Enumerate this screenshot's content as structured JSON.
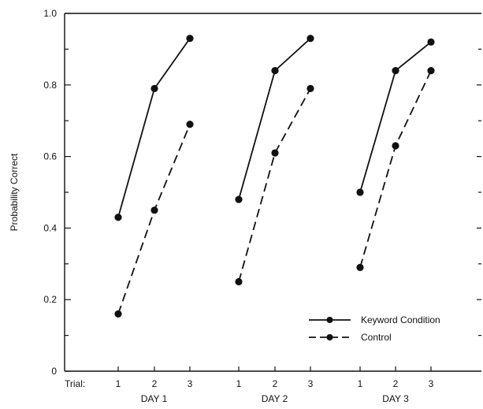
{
  "chart_data": {
    "type": "line",
    "title": "",
    "ylabel": "Probability Correct",
    "xlabel": "",
    "ylim": [
      0,
      1.0
    ],
    "yticks": [
      0,
      0.2,
      0.4,
      0.6,
      0.8,
      1.0
    ],
    "ytick_labels": [
      "0",
      "0.2",
      "0.4",
      "0.6",
      "0.8",
      "1.0"
    ],
    "x_axis_prefix": "Trial:",
    "groups": [
      {
        "label": "DAY 1",
        "trials": [
          "1",
          "2",
          "3"
        ]
      },
      {
        "label": "DAY 2",
        "trials": [
          "1",
          "2",
          "3"
        ]
      },
      {
        "label": "DAY 3",
        "trials": [
          "1",
          "2",
          "3"
        ]
      }
    ],
    "series": [
      {
        "name": "Keyword Condition",
        "line_style": "solid",
        "values": [
          [
            0.43,
            0.79,
            0.93
          ],
          [
            0.48,
            0.84,
            0.93
          ],
          [
            0.5,
            0.84,
            0.92
          ]
        ]
      },
      {
        "name": "Control",
        "line_style": "dashed",
        "values": [
          [
            0.16,
            0.45,
            0.69
          ],
          [
            0.25,
            0.61,
            0.79
          ],
          [
            0.29,
            0.63,
            0.84
          ]
        ]
      }
    ],
    "legend_position": "bottom-right",
    "grid": false,
    "colors": {
      "ink": "#111111",
      "background": "#ffffff"
    }
  }
}
